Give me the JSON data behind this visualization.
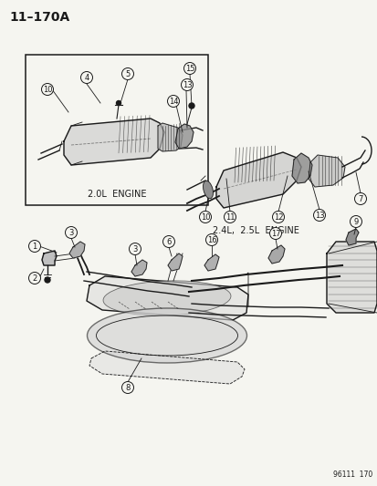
{
  "title": "11–170A",
  "background_color": "#f5f5f0",
  "line_color": "#1a1a1a",
  "text_color": "#1a1a1a",
  "diagram_number": "96111  170",
  "label_2ol": "2.0L  ENGINE",
  "label_24l": "2.4L,  2.5L  ENGINE",
  "fig_width": 4.14,
  "fig_height": 5.33,
  "dpi": 100,
  "title_fontsize": 10,
  "label_fontsize": 7,
  "callout_fontsize": 6,
  "callout_r": 6.5
}
